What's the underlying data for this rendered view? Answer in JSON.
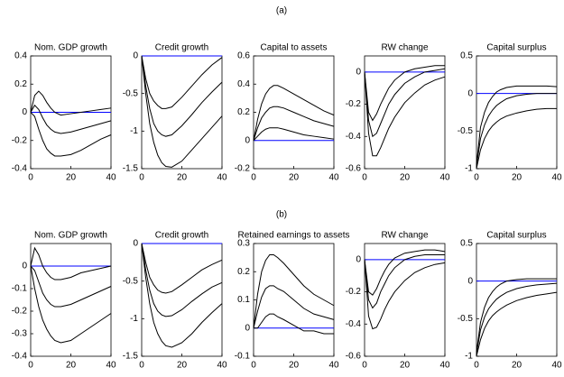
{
  "panel_labels": [
    "(a)",
    "(b)"
  ],
  "chart_data": [
    {
      "type": "line",
      "title": "Nom. GDP growth",
      "x": [
        0,
        2,
        4,
        6,
        8,
        10,
        12,
        15,
        20,
        25,
        30,
        35,
        40
      ],
      "xlim": [
        0,
        40
      ],
      "xticks": [
        0,
        20,
        40
      ],
      "ylim": [
        -0.4,
        0.4
      ],
      "yticks": [
        -0.4,
        -0.2,
        0,
        0.2,
        0.4
      ],
      "series": [
        {
          "color": "#0000ff",
          "values": [
            0,
            0,
            0,
            0,
            0,
            0,
            0,
            0,
            0,
            0,
            0,
            0,
            0
          ]
        },
        {
          "color": "#000000",
          "values": [
            0,
            0.12,
            0.15,
            0.12,
            0.07,
            0.03,
            0.0,
            -0.02,
            -0.01,
            0.0,
            0.01,
            0.02,
            0.03
          ]
        },
        {
          "color": "#000000",
          "values": [
            0,
            0.05,
            0.02,
            -0.04,
            -0.09,
            -0.12,
            -0.14,
            -0.15,
            -0.14,
            -0.12,
            -0.1,
            -0.08,
            -0.06
          ]
        },
        {
          "color": "#000000",
          "values": [
            0,
            -0.03,
            -0.12,
            -0.2,
            -0.26,
            -0.29,
            -0.31,
            -0.31,
            -0.3,
            -0.27,
            -0.23,
            -0.19,
            -0.16
          ]
        }
      ]
    },
    {
      "type": "line",
      "title": "Credit growth",
      "x": [
        0,
        2,
        4,
        6,
        8,
        10,
        12,
        15,
        20,
        25,
        30,
        35,
        40
      ],
      "xlim": [
        0,
        40
      ],
      "xticks": [
        0,
        20,
        40
      ],
      "ylim": [
        -1.5,
        0
      ],
      "yticks": [
        -1.5,
        -1,
        -0.5,
        0
      ],
      "series": [
        {
          "color": "#0000ff",
          "values": [
            0,
            0,
            0,
            0,
            0,
            0,
            0,
            0,
            0,
            0,
            0,
            0,
            0
          ]
        },
        {
          "color": "#000000",
          "values": [
            0,
            -0.3,
            -0.5,
            -0.6,
            -0.66,
            -0.7,
            -0.7,
            -0.68,
            -0.55,
            -0.4,
            -0.25,
            -0.12,
            -0.02
          ]
        },
        {
          "color": "#000000",
          "values": [
            0,
            -0.4,
            -0.7,
            -0.9,
            -1.0,
            -1.05,
            -1.07,
            -1.05,
            -0.93,
            -0.78,
            -0.62,
            -0.48,
            -0.35
          ]
        },
        {
          "color": "#000000",
          "values": [
            0,
            -0.5,
            -0.9,
            -1.15,
            -1.32,
            -1.42,
            -1.47,
            -1.48,
            -1.4,
            -1.25,
            -1.1,
            -0.95,
            -0.8
          ]
        }
      ]
    },
    {
      "type": "line",
      "title": "Capital to assets",
      "x": [
        0,
        2,
        4,
        6,
        8,
        10,
        12,
        15,
        20,
        25,
        30,
        35,
        40
      ],
      "xlim": [
        0,
        40
      ],
      "xticks": [
        0,
        20,
        40
      ],
      "ylim": [
        -0.2,
        0.6
      ],
      "yticks": [
        -0.2,
        0,
        0.2,
        0.4,
        0.6
      ],
      "series": [
        {
          "color": "#0000ff",
          "values": [
            0,
            0,
            0,
            0,
            0,
            0,
            0,
            0,
            0,
            0,
            0,
            0,
            0
          ]
        },
        {
          "color": "#000000",
          "values": [
            0,
            0.15,
            0.26,
            0.33,
            0.37,
            0.39,
            0.39,
            0.37,
            0.33,
            0.29,
            0.25,
            0.21,
            0.18
          ]
        },
        {
          "color": "#000000",
          "values": [
            0,
            0.09,
            0.16,
            0.2,
            0.23,
            0.24,
            0.24,
            0.23,
            0.2,
            0.17,
            0.14,
            0.12,
            0.1
          ]
        },
        {
          "color": "#000000",
          "values": [
            0,
            0.03,
            0.06,
            0.08,
            0.09,
            0.09,
            0.09,
            0.08,
            0.06,
            0.04,
            0.03,
            0.02,
            0.01
          ]
        }
      ]
    },
    {
      "type": "line",
      "title": "RW change",
      "x": [
        0,
        2,
        4,
        6,
        8,
        10,
        12,
        15,
        20,
        25,
        30,
        35,
        40
      ],
      "xlim": [
        0,
        40
      ],
      "xticks": [
        0,
        20,
        40
      ],
      "ylim": [
        -0.6,
        0.1
      ],
      "yticks": [
        -0.6,
        -0.4,
        -0.2,
        0
      ],
      "series": [
        {
          "color": "#0000ff",
          "values": [
            0,
            0,
            0,
            0,
            0,
            0,
            0,
            0,
            0,
            0,
            0,
            0,
            0
          ]
        },
        {
          "color": "#000000",
          "values": [
            0,
            -0.25,
            -0.3,
            -0.26,
            -0.2,
            -0.15,
            -0.1,
            -0.05,
            0,
            0.02,
            0.03,
            0.04,
            0.04
          ]
        },
        {
          "color": "#000000",
          "values": [
            0,
            -0.3,
            -0.4,
            -0.38,
            -0.32,
            -0.26,
            -0.2,
            -0.14,
            -0.07,
            -0.03,
            0,
            0.01,
            0.02
          ]
        },
        {
          "color": "#000000",
          "values": [
            0,
            -0.38,
            -0.52,
            -0.52,
            -0.47,
            -0.41,
            -0.35,
            -0.28,
            -0.19,
            -0.13,
            -0.08,
            -0.05,
            -0.03
          ]
        }
      ]
    },
    {
      "type": "line",
      "title": "Capital surplus",
      "x": [
        0,
        2,
        4,
        6,
        8,
        10,
        12,
        15,
        20,
        25,
        30,
        35,
        40
      ],
      "xlim": [
        0,
        40
      ],
      "xticks": [
        0,
        20,
        40
      ],
      "ylim": [
        -1,
        0.5
      ],
      "yticks": [
        -1,
        -0.5,
        0,
        0.5
      ],
      "series": [
        {
          "color": "#0000ff",
          "values": [
            0,
            0,
            0,
            0,
            0,
            0,
            0,
            0,
            0,
            0,
            0,
            0,
            0
          ]
        },
        {
          "color": "#000000",
          "values": [
            -0.95,
            -0.45,
            -0.25,
            -0.12,
            -0.04,
            0.02,
            0.05,
            0.08,
            0.1,
            0.1,
            0.1,
            0.1,
            0.09
          ]
        },
        {
          "color": "#000000",
          "values": [
            -0.97,
            -0.6,
            -0.42,
            -0.3,
            -0.22,
            -0.16,
            -0.12,
            -0.07,
            -0.03,
            -0.01,
            0,
            0,
            0
          ]
        },
        {
          "color": "#000000",
          "values": [
            -1,
            -0.75,
            -0.6,
            -0.5,
            -0.43,
            -0.38,
            -0.34,
            -0.3,
            -0.26,
            -0.23,
            -0.21,
            -0.2,
            -0.2
          ]
        }
      ]
    },
    {
      "type": "line",
      "title": "Nom. GDP growth",
      "x": [
        0,
        2,
        4,
        6,
        8,
        10,
        12,
        15,
        20,
        25,
        30,
        35,
        40
      ],
      "xlim": [
        0,
        40
      ],
      "xticks": [
        0,
        20,
        40
      ],
      "ylim": [
        -0.4,
        0.1
      ],
      "yticks": [
        -0.4,
        -0.3,
        -0.2,
        -0.1,
        0
      ],
      "series": [
        {
          "color": "#0000ff",
          "values": [
            0,
            0,
            0,
            0,
            0,
            0,
            0,
            0,
            0,
            0,
            0,
            0,
            0
          ]
        },
        {
          "color": "#000000",
          "values": [
            0,
            0.08,
            0.05,
            0.0,
            -0.03,
            -0.05,
            -0.06,
            -0.06,
            -0.05,
            -0.03,
            -0.02,
            -0.01,
            0
          ]
        },
        {
          "color": "#000000",
          "values": [
            0,
            -0.02,
            -0.07,
            -0.12,
            -0.15,
            -0.17,
            -0.18,
            -0.18,
            -0.17,
            -0.15,
            -0.13,
            -0.11,
            -0.09
          ]
        },
        {
          "color": "#000000",
          "values": [
            0,
            -0.1,
            -0.18,
            -0.24,
            -0.28,
            -0.31,
            -0.33,
            -0.34,
            -0.33,
            -0.3,
            -0.27,
            -0.24,
            -0.21
          ]
        }
      ]
    },
    {
      "type": "line",
      "title": "Credit growth",
      "x": [
        0,
        2,
        4,
        6,
        8,
        10,
        12,
        15,
        20,
        25,
        30,
        35,
        40
      ],
      "xlim": [
        0,
        40
      ],
      "xticks": [
        0,
        20,
        40
      ],
      "ylim": [
        -1.5,
        0
      ],
      "yticks": [
        -1.5,
        -1,
        -0.5,
        0
      ],
      "series": [
        {
          "color": "#0000ff",
          "values": [
            0,
            0,
            0,
            0,
            0,
            0,
            0,
            0,
            0,
            0,
            0,
            0,
            0
          ]
        },
        {
          "color": "#000000",
          "values": [
            0,
            -0.25,
            -0.45,
            -0.55,
            -0.62,
            -0.65,
            -0.66,
            -0.64,
            -0.55,
            -0.45,
            -0.35,
            -0.28,
            -0.22
          ]
        },
        {
          "color": "#000000",
          "values": [
            0,
            -0.35,
            -0.62,
            -0.8,
            -0.9,
            -0.95,
            -0.97,
            -0.96,
            -0.88,
            -0.77,
            -0.67,
            -0.58,
            -0.52
          ]
        },
        {
          "color": "#000000",
          "values": [
            0,
            -0.45,
            -0.8,
            -1.05,
            -1.2,
            -1.3,
            -1.36,
            -1.38,
            -1.32,
            -1.2,
            -1.05,
            -0.92,
            -0.8
          ]
        }
      ]
    },
    {
      "type": "line",
      "title": "Retained earnings to assets",
      "x": [
        0,
        2,
        4,
        6,
        8,
        10,
        12,
        15,
        20,
        25,
        30,
        35,
        40
      ],
      "xlim": [
        0,
        40
      ],
      "xticks": [
        0,
        20,
        40
      ],
      "ylim": [
        -0.1,
        0.3
      ],
      "yticks": [
        -0.1,
        0,
        0.1,
        0.2,
        0.3
      ],
      "series": [
        {
          "color": "#0000ff",
          "values": [
            0,
            0,
            0,
            0,
            0,
            0,
            0,
            0,
            0,
            0,
            0,
            0,
            0
          ]
        },
        {
          "color": "#000000",
          "values": [
            0,
            0.12,
            0.2,
            0.24,
            0.26,
            0.26,
            0.25,
            0.23,
            0.19,
            0.15,
            0.12,
            0.1,
            0.08
          ]
        },
        {
          "color": "#000000",
          "values": [
            0,
            0.06,
            0.11,
            0.14,
            0.15,
            0.15,
            0.14,
            0.13,
            0.1,
            0.07,
            0.05,
            0.04,
            0.03
          ]
        },
        {
          "color": "#000000",
          "values": [
            0,
            0.0,
            0.02,
            0.04,
            0.05,
            0.05,
            0.04,
            0.03,
            0.01,
            -0.01,
            -0.01,
            -0.02,
            -0.02
          ]
        }
      ]
    },
    {
      "type": "line",
      "title": "RW change",
      "x": [
        0,
        2,
        4,
        6,
        8,
        10,
        12,
        15,
        20,
        25,
        30,
        35,
        40
      ],
      "xlim": [
        0,
        40
      ],
      "xticks": [
        0,
        20,
        40
      ],
      "ylim": [
        -0.6,
        0.1
      ],
      "yticks": [
        -0.6,
        -0.4,
        -0.2,
        0
      ],
      "series": [
        {
          "color": "#0000ff",
          "values": [
            0,
            0,
            0,
            0,
            0,
            0,
            0,
            0,
            0,
            0,
            0,
            0,
            0
          ]
        },
        {
          "color": "#000000",
          "values": [
            0,
            -0.2,
            -0.22,
            -0.18,
            -0.12,
            -0.07,
            -0.03,
            0.01,
            0.04,
            0.05,
            0.06,
            0.06,
            0.05
          ]
        },
        {
          "color": "#000000",
          "values": [
            0,
            -0.25,
            -0.3,
            -0.27,
            -0.2,
            -0.15,
            -0.1,
            -0.05,
            0,
            0.02,
            0.03,
            0.03,
            0.03
          ]
        },
        {
          "color": "#000000",
          "values": [
            0,
            -0.35,
            -0.43,
            -0.42,
            -0.37,
            -0.31,
            -0.26,
            -0.2,
            -0.13,
            -0.08,
            -0.05,
            -0.03,
            -0.02
          ]
        }
      ]
    },
    {
      "type": "line",
      "title": "Capital surplus",
      "x": [
        0,
        2,
        4,
        6,
        8,
        10,
        12,
        15,
        20,
        25,
        30,
        35,
        40
      ],
      "xlim": [
        0,
        40
      ],
      "xticks": [
        0,
        20,
        40
      ],
      "ylim": [
        -1,
        0.5
      ],
      "yticks": [
        -1,
        -0.5,
        0,
        0.5
      ],
      "series": [
        {
          "color": "#0000ff",
          "values": [
            0,
            0,
            0,
            0,
            0,
            0,
            0,
            0,
            0,
            0,
            0,
            0,
            0
          ]
        },
        {
          "color": "#000000",
          "values": [
            -0.95,
            -0.55,
            -0.35,
            -0.22,
            -0.14,
            -0.08,
            -0.04,
            0,
            0.02,
            0.03,
            0.03,
            0.03,
            0.03
          ]
        },
        {
          "color": "#000000",
          "values": [
            -0.97,
            -0.65,
            -0.48,
            -0.37,
            -0.3,
            -0.24,
            -0.2,
            -0.15,
            -0.1,
            -0.07,
            -0.05,
            -0.04,
            -0.03
          ]
        },
        {
          "color": "#000000",
          "values": [
            -1,
            -0.78,
            -0.63,
            -0.53,
            -0.46,
            -0.41,
            -0.37,
            -0.32,
            -0.26,
            -0.22,
            -0.19,
            -0.17,
            -0.15
          ]
        }
      ]
    }
  ]
}
